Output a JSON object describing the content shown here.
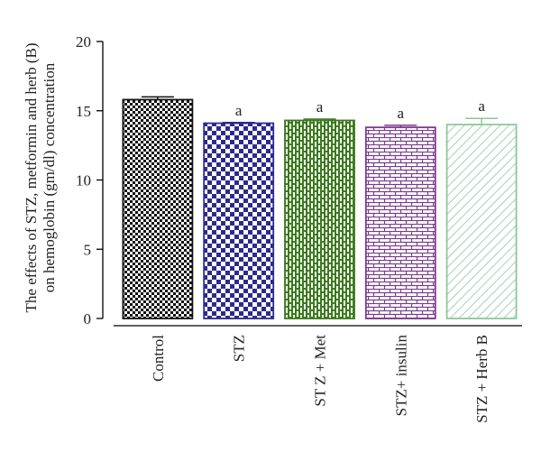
{
  "chart_data": {
    "type": "bar",
    "title": "",
    "ylabel_lines": [
      "The effects of STZ, metformin and herb (B)",
      "on hemoglobin (gm/dl) concentration"
    ],
    "xlabel": "",
    "ylim": [
      0,
      20
    ],
    "yticks": [
      "0",
      "5",
      "10",
      "15",
      "20"
    ],
    "categories": [
      "Control",
      "STZ",
      "ST Z + Met",
      "STZ+ insulin",
      "STZ + Herb B"
    ],
    "values": [
      15.8,
      14.1,
      14.3,
      13.8,
      14.0
    ],
    "errors": [
      0.2,
      0.05,
      0.1,
      0.15,
      0.45
    ],
    "significance": [
      "",
      "a",
      "a",
      "a",
      "a"
    ],
    "colors": [
      "#111111",
      "#2e2a8c",
      "#3c7a1e",
      "#7a3b8c",
      "#8cc79a"
    ],
    "patterns": [
      "checker-fine",
      "checker-large",
      "brick-vertical",
      "brick-horizontal",
      "diagonal-hatch"
    ],
    "grid": false,
    "legend": "none"
  }
}
